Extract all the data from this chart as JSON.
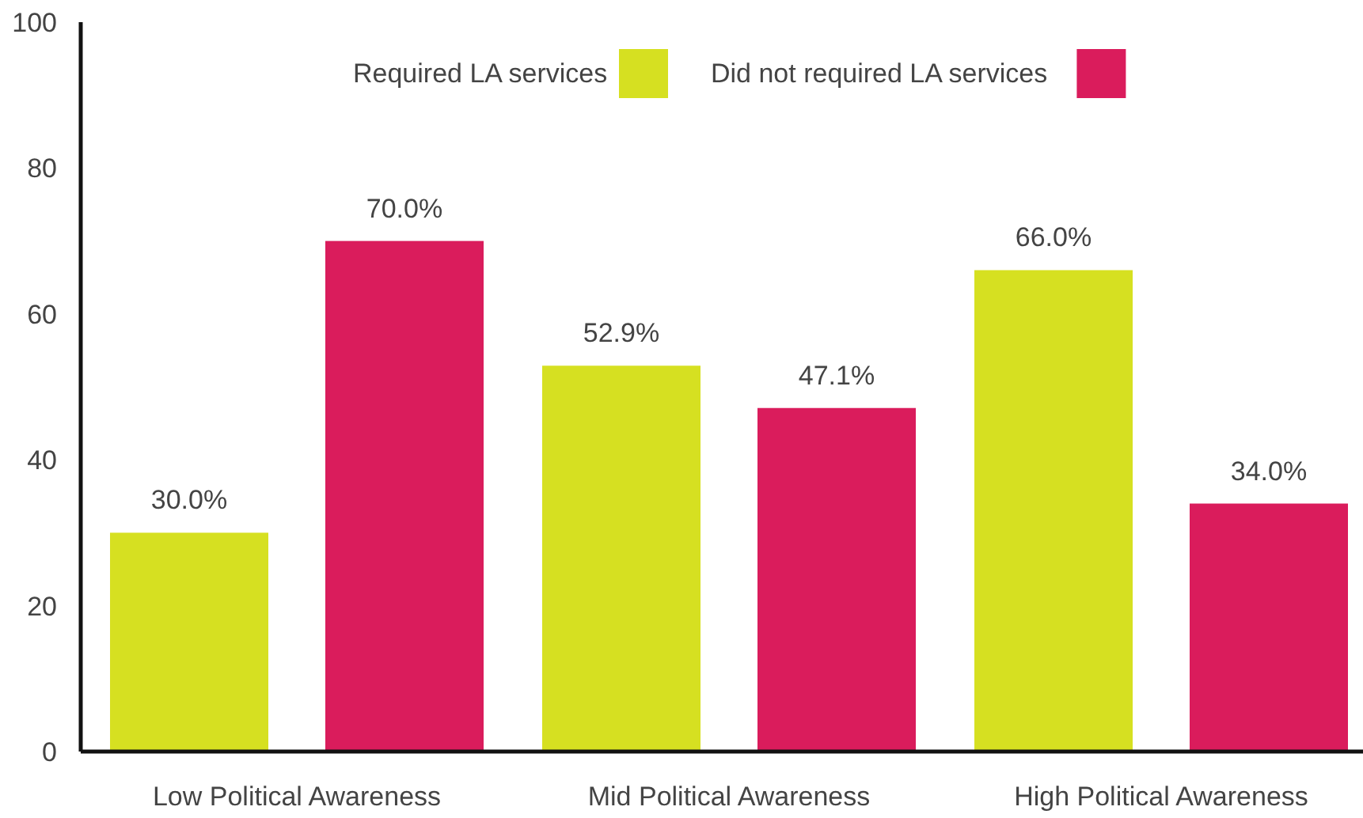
{
  "chart_data": {
    "type": "bar",
    "categories": [
      "Low Political Awareness",
      "Mid Political Awareness",
      "High Political Awareness"
    ],
    "series": [
      {
        "name": "Required LA services",
        "color": "#d6e021",
        "values": [
          30.0,
          52.9,
          66.0
        ],
        "value_labels": [
          "30.0%",
          "52.9%",
          "66.0%"
        ]
      },
      {
        "name": "Did not required LA services",
        "color": "#da1c5c",
        "values": [
          70.0,
          47.1,
          34.0
        ],
        "value_labels": [
          "70.0%",
          "47.1%",
          "34.0%"
        ]
      }
    ],
    "ylim": [
      0,
      100
    ],
    "yticks": [
      0,
      20,
      40,
      60,
      80,
      100
    ],
    "legend": "top",
    "grid": false
  }
}
